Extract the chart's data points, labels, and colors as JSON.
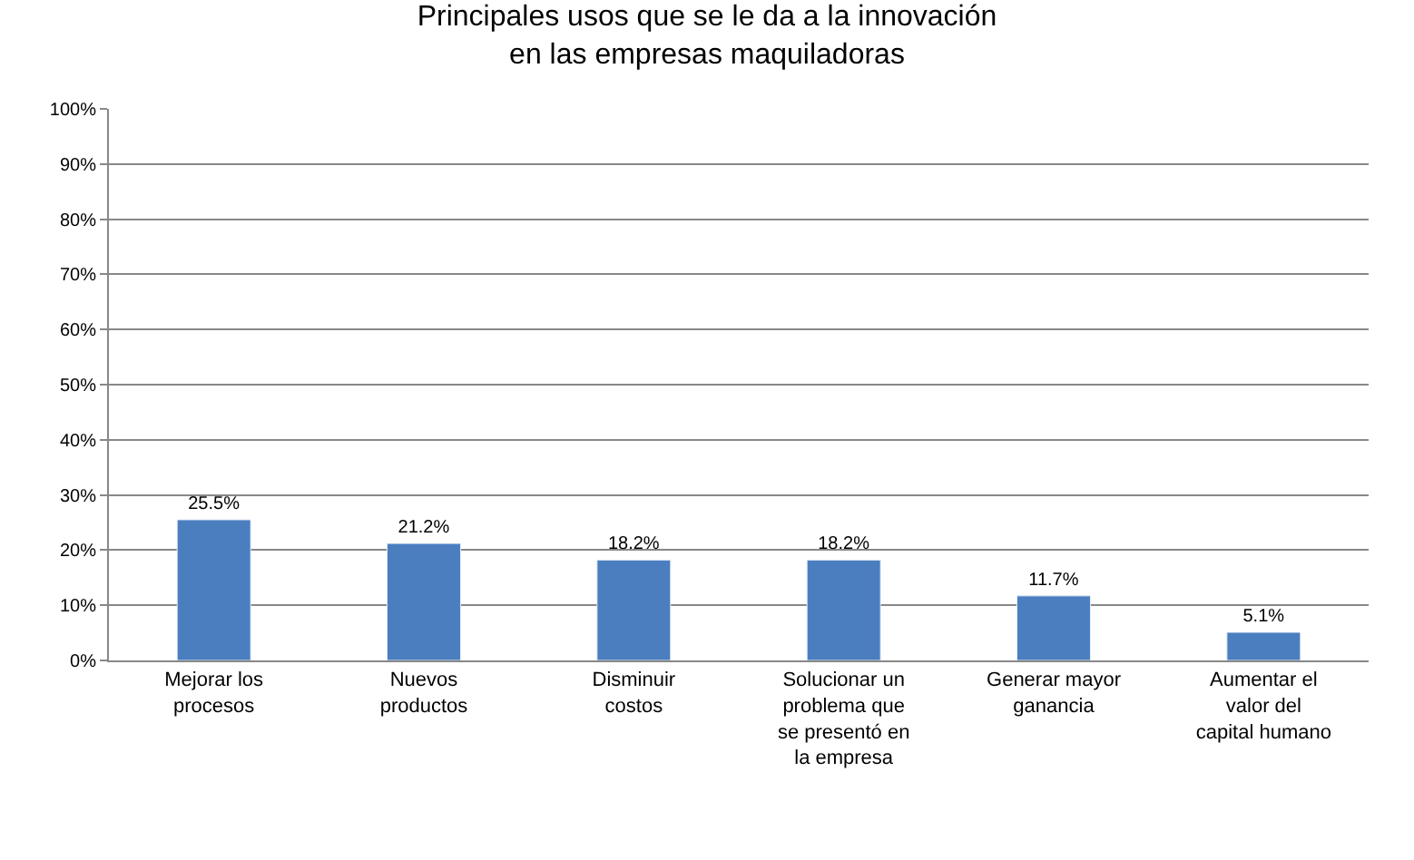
{
  "chart_data": {
    "type": "bar",
    "title": "Principales usos que se le da a la innovación en las empresas maquiladoras",
    "categories": [
      "Mejorar los procesos",
      "Nuevos productos",
      "Disminuir costos",
      "Solucionar un problema que se presentó en la empresa",
      "Generar mayor ganancia",
      "Aumentar el valor del capital humano"
    ],
    "values": [
      25.5,
      21.2,
      18.2,
      18.2,
      11.7,
      5.1
    ],
    "value_labels": [
      "25.5%",
      "21.2%",
      "18.2%",
      "18.2%",
      "11.7%",
      "5.1%"
    ],
    "color": "#4a7ebf",
    "ylim": [
      0,
      100
    ],
    "yticks": [
      {
        "value": 0,
        "label": "0%"
      },
      {
        "value": 10,
        "label": "10%"
      },
      {
        "value": 20,
        "label": "20%"
      },
      {
        "value": 30,
        "label": "30%"
      },
      {
        "value": 40,
        "label": "40%"
      },
      {
        "value": 50,
        "label": "50%"
      },
      {
        "value": 60,
        "label": "60%"
      },
      {
        "value": 70,
        "label": "70%"
      },
      {
        "value": 80,
        "label": "80%"
      },
      {
        "value": 90,
        "label": "90%"
      },
      {
        "value": 100,
        "label": "100%"
      }
    ],
    "grid": "y",
    "legend": false
  }
}
